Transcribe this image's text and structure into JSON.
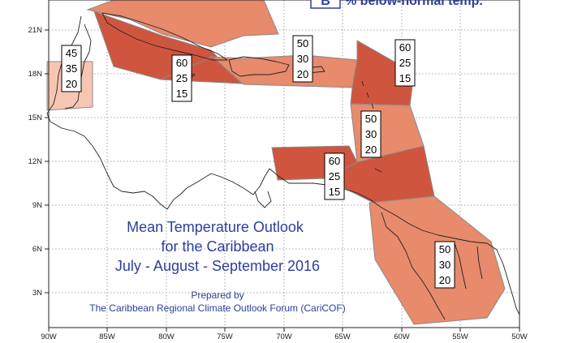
{
  "map": {
    "title_lines": [
      "Mean Temperature Outlook",
      "for the Caribbean",
      "July - August - September 2016"
    ],
    "credit_lines": [
      "Prepared by",
      "The Caribbean Regional Climate Outlook Forum (CariCOF)"
    ],
    "legend": {
      "letter": "B",
      "text": "% below-normal temp."
    },
    "lon_labels": [
      "90W",
      "85W",
      "80W",
      "75W",
      "70W",
      "65W",
      "60W",
      "55W",
      "50W"
    ],
    "lat_labels": [
      "21N",
      "18N",
      "15N",
      "12N",
      "9N",
      "6N",
      "3N"
    ],
    "colors": {
      "dark": "#d0553e",
      "medium": "#e88a6c",
      "light": "#f7c6b3",
      "legend": "#2b3f9e",
      "grid": "#8a8a8a"
    },
    "regions": [
      {
        "name": "bahamas",
        "color": "medium",
        "probs": [
          "",
          "",
          ""
        ],
        "show_box": false
      },
      {
        "name": "cuba",
        "color": "dark",
        "probs": [
          "",
          "",
          ""
        ],
        "show_box": false
      },
      {
        "name": "belize-yucatan",
        "color": "light",
        "probs": [
          "45",
          "35",
          "20"
        ],
        "show_box": true
      },
      {
        "name": "jamaica",
        "color": "dark",
        "probs": [
          "60",
          "25",
          "15"
        ],
        "show_box": true
      },
      {
        "name": "hispaniola",
        "color": "medium",
        "probs": [
          "50",
          "30",
          "20"
        ],
        "show_box": true
      },
      {
        "name": "puerto-rico-leewards",
        "color": "dark",
        "probs": [
          "60",
          "25",
          "15"
        ],
        "show_box": true
      },
      {
        "name": "windwards",
        "color": "medium",
        "probs": [
          "50",
          "30",
          "20"
        ],
        "show_box": true
      },
      {
        "name": "abc-islands",
        "color": "dark",
        "probs": [
          "",
          "",
          ""
        ],
        "show_box": false
      },
      {
        "name": "trinidad-tobago",
        "color": "dark",
        "probs": [
          "60",
          "25",
          "15"
        ],
        "show_box": true
      },
      {
        "name": "guyanas",
        "color": "medium",
        "probs": [
          "50",
          "30",
          "20"
        ],
        "show_box": true
      }
    ]
  }
}
